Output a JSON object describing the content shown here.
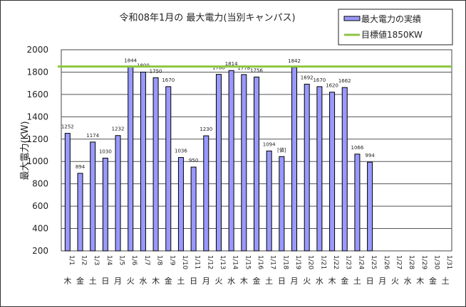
{
  "chart_data": {
    "type": "bar",
    "title": "令和08年1月の 最大電力(当別キャンパス)",
    "ylabel": "最大電力(KW)",
    "xlabel": "",
    "ylim": [
      200,
      2000
    ],
    "yticks": [
      200,
      400,
      600,
      800,
      1000,
      1200,
      1400,
      1600,
      1800,
      2000
    ],
    "grid": true,
    "legend_position": "top-right",
    "categories": [
      "1/1",
      "1/2",
      "1/3",
      "1/4",
      "1/5",
      "1/6",
      "1/7",
      "1/8",
      "1/9",
      "1/10",
      "1/11",
      "1/12",
      "1/13",
      "1/14",
      "1/15",
      "1/16",
      "1/17",
      "1/18",
      "1/19",
      "1/20",
      "1/21",
      "1/22",
      "1/23",
      "1/24",
      "1/25",
      "1/26",
      "1/27",
      "1/28",
      "1/29",
      "1/30",
      "1/31"
    ],
    "weekdays": [
      "木",
      "金",
      "土",
      "日",
      "月",
      "火",
      "水",
      "木",
      "金",
      "土",
      "日",
      "月",
      "火",
      "水",
      "木",
      "金",
      "土",
      "日",
      "月",
      "火",
      "水",
      "木",
      "金",
      "土",
      "日",
      "月",
      "火",
      "水",
      "木",
      "金",
      "土"
    ],
    "series": [
      {
        "name": "最大電力の実績",
        "color": "#9999ff",
        "values": [
          1252,
          894,
          1174,
          1030,
          1232,
          1844,
          1800,
          1750,
          1670,
          1036,
          950,
          1230,
          1780,
          1814,
          1778,
          1756,
          1094,
          1044,
          1842,
          1692,
          1670,
          1620,
          1662,
          1066,
          994,
          null,
          null,
          null,
          null,
          null,
          null
        ],
        "labels": [
          "1252",
          "894",
          "1174",
          "1030",
          "1232",
          "1844",
          "1800",
          "1750",
          "1670",
          "1036",
          "950",
          "1230",
          "1780",
          "1814",
          "1778",
          "1756",
          "1094",
          "[値]",
          "1842",
          "1692",
          "1670",
          "1620",
          "1662",
          "1066",
          "994",
          "",
          "",
          "",
          "",
          "",
          ""
        ]
      }
    ],
    "target": {
      "name": "目標値1850KW",
      "value": 1850,
      "color": "#8cc63f"
    }
  }
}
